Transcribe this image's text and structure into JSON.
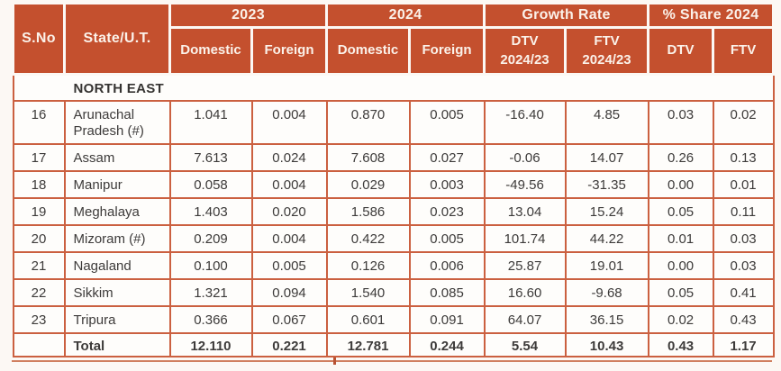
{
  "colors": {
    "header_bg": "#c4502e",
    "header_text": "#fbf2ea",
    "grid_border": "#cb6040",
    "body_text": "#3d3b3a",
    "page_bg": "#fcf8f4"
  },
  "table": {
    "header": {
      "sno": "S.No",
      "state": "State/U.T.",
      "groups": [
        {
          "label": "2023",
          "children": [
            "Domestic",
            "Foreign"
          ]
        },
        {
          "label": "2024",
          "children": [
            "Domestic",
            "Foreign"
          ]
        },
        {
          "label": "Growth Rate",
          "children": [
            "DTV\n2024/23",
            "FTV\n2024/23"
          ]
        },
        {
          "label": "% Share 2024",
          "children": [
            "DTV",
            "FTV"
          ]
        }
      ]
    },
    "section_label": "NORTH EAST",
    "rows": [
      {
        "sno": "16",
        "state": "Arunachal Pradesh (#)",
        "values": [
          "1.041",
          "0.004",
          "0.870",
          "0.005",
          "-16.40",
          "4.85",
          "0.03",
          "0.02"
        ]
      },
      {
        "sno": "17",
        "state": "Assam",
        "values": [
          "7.613",
          "0.024",
          "7.608",
          "0.027",
          "-0.06",
          "14.07",
          "0.26",
          "0.13"
        ]
      },
      {
        "sno": "18",
        "state": "Manipur",
        "values": [
          "0.058",
          "0.004",
          "0.029",
          "0.003",
          "-49.56",
          "-31.35",
          "0.00",
          "0.01"
        ]
      },
      {
        "sno": "19",
        "state": "Meghalaya",
        "values": [
          "1.403",
          "0.020",
          "1.586",
          "0.023",
          "13.04",
          "15.24",
          "0.05",
          "0.11"
        ]
      },
      {
        "sno": "20",
        "state": "Mizoram (#)",
        "values": [
          "0.209",
          "0.004",
          "0.422",
          "0.005",
          "101.74",
          "44.22",
          "0.01",
          "0.03"
        ]
      },
      {
        "sno": "21",
        "state": "Nagaland",
        "values": [
          "0.100",
          "0.005",
          "0.126",
          "0.006",
          "25.87",
          "19.01",
          "0.00",
          "0.03"
        ]
      },
      {
        "sno": "22",
        "state": "Sikkim",
        "values": [
          "1.321",
          "0.094",
          "1.540",
          "0.085",
          "16.60",
          "-9.68",
          "0.05",
          "0.41"
        ]
      },
      {
        "sno": "23",
        "state": "Tripura",
        "values": [
          "0.366",
          "0.067",
          "0.601",
          "0.091",
          "64.07",
          "36.15",
          "0.02",
          "0.43"
        ]
      }
    ],
    "total": {
      "label": "Total",
      "values": [
        "12.110",
        "0.221",
        "12.781",
        "0.244",
        "5.54",
        "10.43",
        "0.43",
        "1.17"
      ]
    }
  }
}
